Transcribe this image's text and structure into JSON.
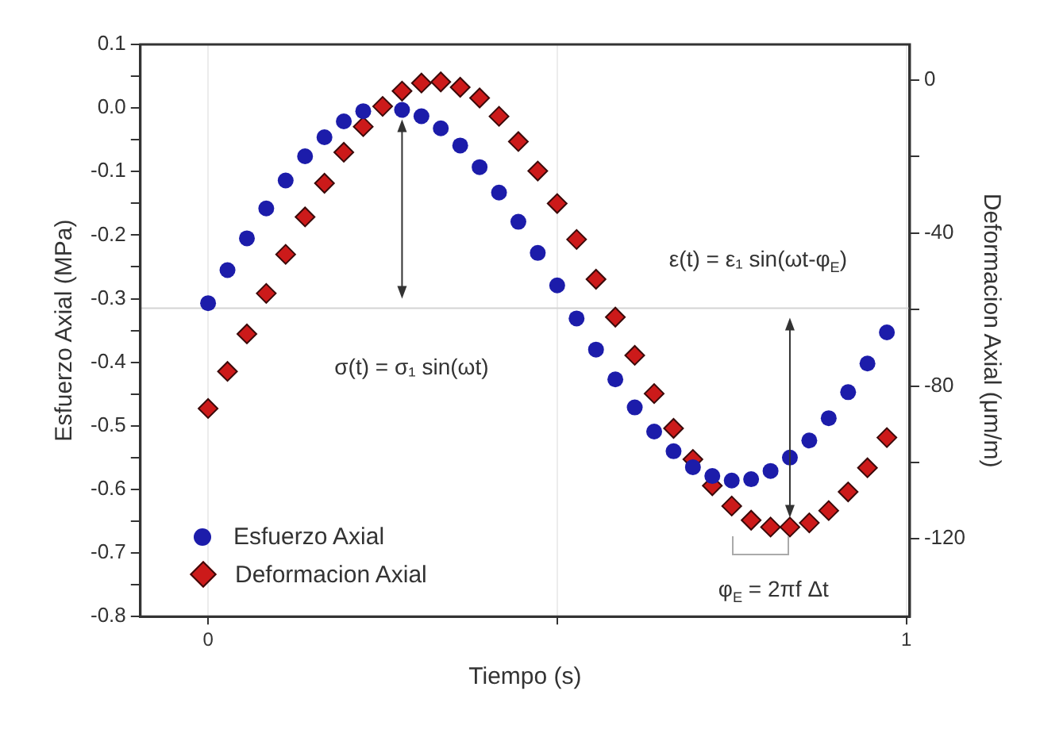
{
  "chart_data": {
    "type": "scatter",
    "xlabel": "Tiempo (s)",
    "ylabel": "Esfuerzo Axial (MPa)",
    "y2label": "Deformacion Axial (μm/m)",
    "x": [
      0,
      0.0278,
      0.0556,
      0.0833,
      0.1111,
      0.1389,
      0.1667,
      0.1944,
      0.2222,
      0.25,
      0.2778,
      0.3056,
      0.3333,
      0.3611,
      0.3889,
      0.4167,
      0.4444,
      0.4722,
      0.5,
      0.5278,
      0.5556,
      0.5833,
      0.6111,
      0.6389,
      0.6667,
      0.6944,
      0.7222,
      0.75,
      0.7778,
      0.8056,
      0.8333,
      0.8611,
      0.8889,
      0.9167,
      0.9444,
      0.9722
    ],
    "series": [
      {
        "name": "Esfuerzo Axial",
        "color": "#1c1caa",
        "marker": "circle",
        "values": [
          -0.307,
          -0.255,
          -0.205,
          -0.158,
          -0.114,
          -0.076,
          -0.046,
          -0.021,
          -0.005,
          null,
          -0.003,
          -0.013,
          -0.032,
          -0.059,
          -0.093,
          -0.133,
          -0.179,
          -0.228,
          -0.279,
          -0.331,
          -0.38,
          -0.427,
          -0.471,
          -0.509,
          -0.54,
          -0.565,
          -0.579,
          -0.586,
          -0.584,
          -0.571,
          -0.55,
          -0.523,
          -0.488,
          -0.447,
          -0.402,
          -0.353
        ]
      },
      {
        "name": "Deformacion Axial",
        "color": "#cc1a1a",
        "marker": "diamond",
        "axis": "y2",
        "values": [
          -85.9,
          -76.2,
          -66.4,
          -55.8,
          -45.6,
          -35.8,
          -27.0,
          -18.9,
          -12.2,
          -6.9,
          -2.9,
          -0.8,
          -0.5,
          -1.9,
          -4.7,
          -9.5,
          -16.1,
          -23.8,
          -32.3,
          -41.7,
          -52.1,
          -62.0,
          -72.0,
          -82.0,
          -91.1,
          -99.2,
          -106.1,
          -111.4,
          -115.1,
          -116.9,
          -116.9,
          -115.8,
          -112.6,
          -107.7,
          -101.4,
          -93.5
        ]
      }
    ],
    "xlim": [
      -0.097,
      1.005
    ],
    "xticks": [
      0,
      {
        "value": 0.5,
        "label": null
      },
      1
    ],
    "ylim": [
      -0.8,
      0.1
    ],
    "yticks": [
      0.1,
      {
        "value": 0.05,
        "label": null
      },
      {
        "value": 0,
        "label": "0.0"
      },
      {
        "value": -0.05,
        "label": null
      },
      -0.1,
      {
        "value": -0.15,
        "label": null
      },
      -0.2,
      {
        "value": -0.25,
        "label": null
      },
      -0.3,
      {
        "value": -0.35,
        "label": null
      },
      -0.4,
      {
        "value": -0.45,
        "label": null
      },
      -0.5,
      {
        "value": -0.55,
        "label": null
      },
      -0.6,
      {
        "value": -0.65,
        "label": null
      },
      -0.7,
      {
        "value": -0.75,
        "label": null
      },
      -0.8
    ],
    "y2lim": [
      -140.3,
      9.3
    ],
    "y2ticks": [
      0,
      {
        "value": -20,
        "label": null
      },
      -40,
      {
        "value": -60,
        "label": null
      },
      -80,
      {
        "value": -100,
        "label": null
      },
      -120
    ],
    "ref_lines": [
      {
        "axis": "y",
        "value": -0.315,
        "color": "#d4d4d4"
      }
    ],
    "annotations": [
      "σ(t) = σ₁ sin(ωt)",
      "ε(t) = ε₁ sin(ωt-φ$_{E}$)",
      "φ$_{E}$ = 2πf Δt"
    ],
    "grid": "x",
    "legend": "bottom left"
  }
}
